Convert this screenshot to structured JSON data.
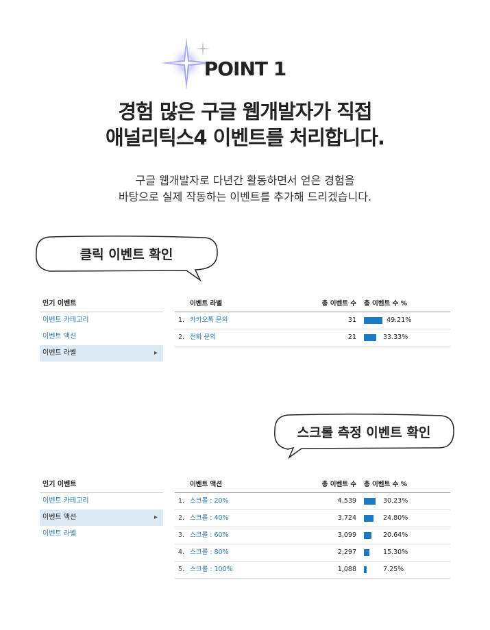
{
  "header": {
    "badge": "POINT 1",
    "title_lines": [
      "경험 많은 구글 웹개발자가 직접",
      "애널리틱스4 이벤트를 처리합니다."
    ],
    "description_lines": [
      "구글 웹개발자로 다년간 활동하면서 얻은 경험을",
      "바탕으로 실제 작동하는 이벤트를 추가해 드리겠습니다."
    ]
  },
  "sections": [
    {
      "bubble": "클릭 이벤트 확인",
      "sidebar": {
        "heading": "인기 이벤트",
        "items": [
          "이벤트 카테고리",
          "이벤트 액션",
          "이벤트 라벨"
        ],
        "selected": 2
      },
      "table": {
        "columns": [
          "이벤트 라벨",
          "총 이벤트 수",
          "총 이벤트 수 %"
        ],
        "rows": [
          {
            "rank": "1.",
            "label": "카카오톡 문의",
            "count": "31",
            "share": 49.21,
            "share_label": "49.21%"
          },
          {
            "rank": "2.",
            "label": "전화 문의",
            "count": "21",
            "share": 33.33,
            "share_label": "33.33%"
          }
        ]
      }
    },
    {
      "bubble": "스크롤 측정 이벤트 확인",
      "sidebar": {
        "heading": "인기 이벤트",
        "items": [
          "이벤트 카테고리",
          "이벤트 액션",
          "이벤트 라벨"
        ],
        "selected": 1
      },
      "table": {
        "columns": [
          "이벤트 액션",
          "총 이벤트 수",
          "총 이벤트 수 %"
        ],
        "rows": [
          {
            "rank": "1.",
            "label": "스크롤 : 20%",
            "count": "4,539",
            "share": 30.23,
            "share_label": "30.23%"
          },
          {
            "rank": "2.",
            "label": "스크롤 : 40%",
            "count": "3,724",
            "share": 24.8,
            "share_label": "24.80%"
          },
          {
            "rank": "3.",
            "label": "스크롤 : 60%",
            "count": "3,099",
            "share": 20.64,
            "share_label": "20.64%"
          },
          {
            "rank": "4.",
            "label": "스크롤 : 80%",
            "count": "2,297",
            "share": 15.3,
            "share_label": "15.30%"
          },
          {
            "rank": "5.",
            "label": "스크롤 : 100%",
            "count": "1,088",
            "share": 7.25,
            "share_label": "7.25%"
          }
        ]
      }
    }
  ]
}
